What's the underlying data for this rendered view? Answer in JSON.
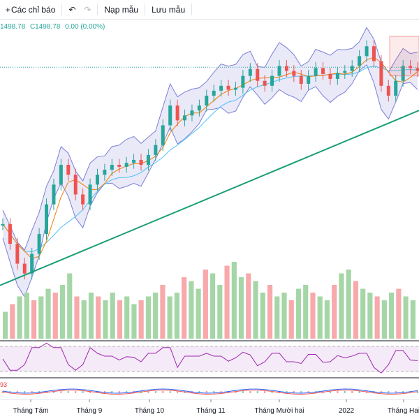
{
  "toolbar": {
    "indicators_label": "Các chỉ báo",
    "undo_icon": "undo-icon",
    "redo_icon": "redo-icon",
    "load_template_label": "Nạp mẫu",
    "save_template_label": "Lưu mẫu"
  },
  "ohlc_text": {
    "open": "1498.78",
    "close": "C1498.78",
    "change": "0.00 (0.00%)"
  },
  "rsi_value_fragment": "93",
  "colors": {
    "up": "#26a69a",
    "down": "#ef5350",
    "volume_up": "#a5d6a7",
    "volume_down": "#f7a9ab",
    "bollinger_fill": "#e1e1f5",
    "bollinger_line": "#7b7fd6",
    "ma_fast": "#f57c00",
    "ma_slow": "#4fc3f7",
    "trendline": "#1b9e77",
    "rsi_line": "#9c27b0",
    "rsi_band": "#f3e5f5"
  },
  "chart_data": {
    "type": "candlestick",
    "x_tick_labels": [
      "Tháng Tám",
      "Tháng 9",
      "Tháng 10",
      "Tháng 11",
      "Tháng Mười hai",
      "2022",
      "Tháng Hai"
    ],
    "price_range": [
      1270,
      1535
    ],
    "reference_price": 1498.78,
    "price_trend": [
      1340,
      1320,
      1300,
      1290,
      1310,
      1330,
      1360,
      1380,
      1400,
      1390,
      1370,
      1360,
      1380,
      1390,
      1395,
      1400,
      1398,
      1402,
      1405,
      1400,
      1410,
      1420,
      1440,
      1460,
      1445,
      1450,
      1455,
      1460,
      1470,
      1475,
      1480,
      1476,
      1478,
      1490,
      1497,
      1485,
      1480,
      1490,
      1500,
      1495,
      1490,
      1482,
      1490,
      1498,
      1492,
      1487,
      1493,
      1495,
      1500,
      1510,
      1520,
      1505,
      1480,
      1470,
      1485,
      1500,
      1498,
      1495
    ],
    "volume_relative": [
      0.35,
      0.45,
      0.55,
      0.6,
      0.5,
      0.55,
      0.65,
      0.6,
      0.7,
      0.85,
      0.55,
      0.5,
      0.6,
      0.55,
      0.5,
      0.6,
      0.5,
      0.55,
      0.45,
      0.5,
      0.55,
      0.6,
      0.7,
      0.55,
      0.6,
      0.8,
      0.75,
      0.65,
      0.9,
      0.85,
      0.7,
      0.95,
      1.0,
      0.8,
      0.85,
      0.75,
      0.6,
      0.7,
      0.55,
      0.6,
      0.5,
      0.65,
      0.7,
      0.6,
      0.55,
      0.5,
      0.7,
      0.85,
      0.9,
      0.75,
      0.65,
      0.6,
      0.55,
      0.5,
      0.6,
      0.65,
      0.55,
      0.5
    ],
    "rsi_range": [
      30,
      70
    ],
    "trendline_range": [
      1278,
      1455
    ]
  }
}
